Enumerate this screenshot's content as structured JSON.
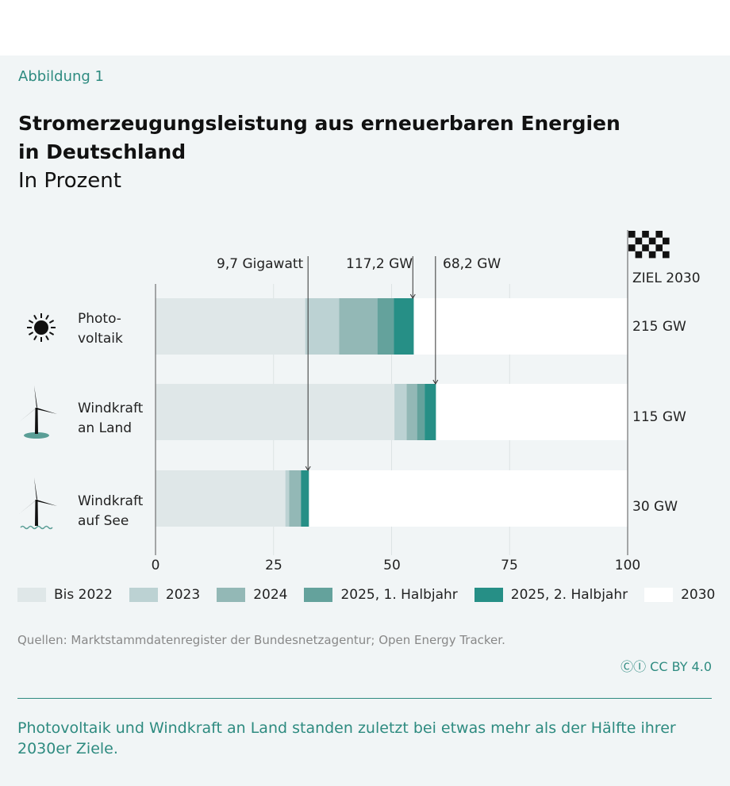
{
  "kicker": "Abbildung 1",
  "chart_data": {
    "type": "bar",
    "orientation": "horizontal-stacked",
    "title": "Stromerzeugungsleistung aus erneuerbaren Energien in Deutschland",
    "title_lines": [
      "Stromerzeugungsleistung aus erneuerbaren Energien",
      "in Deutschland"
    ],
    "subtitle": "In Prozent",
    "xlim": [
      0,
      100
    ],
    "xticks": [
      "0",
      "25",
      "50",
      "75",
      "100"
    ],
    "grid": true,
    "legend_position": "bottom",
    "categories": [
      {
        "lines": [
          "Photo-",
          "voltaik"
        ],
        "icon": "sun-icon",
        "target": "215 GW"
      },
      {
        "lines": [
          "Windkraft",
          "an Land"
        ],
        "icon": "wind-turbine-icon",
        "target": "115 GW"
      },
      {
        "lines": [
          "Windkraft",
          "auf See"
        ],
        "icon": "offshore-wind-turbine-icon",
        "target": "30 GW"
      }
    ],
    "series": [
      {
        "name": "Bis 2022",
        "color": "#dfe7e8",
        "values": [
          31.7,
          50.6,
          27.5
        ]
      },
      {
        "name": "2023",
        "color": "#bcd2d3",
        "values": [
          7.2,
          2.6,
          0.8
        ]
      },
      {
        "name": "2024",
        "color": "#93b8b6",
        "values": [
          8.1,
          2.2,
          2.5
        ]
      },
      {
        "name": "2025, 1. Halbjahr",
        "color": "#64a29c",
        "values": [
          3.5,
          1.6,
          0.0
        ]
      },
      {
        "name": "2025, 2. Halbjahr",
        "color": "#268f86",
        "values": [
          4.2,
          2.4,
          1.7
        ]
      },
      {
        "name": "2030",
        "color": "#ffffff",
        "values": [
          45.3,
          40.6,
          67.5
        ]
      }
    ],
    "annotations": [
      {
        "text": "9,7 Gigawatt",
        "category": 2,
        "value": 32.3
      },
      {
        "text": "117,2 GW",
        "category": 0,
        "value": 54.5
      },
      {
        "text": "68,2 GW",
        "category": 1,
        "value": 59.3
      }
    ],
    "target_label": "ZIEL 2030"
  },
  "source": "Quellen: Marktstammdatenregister der Bundesnetzagentur; Open Energy Tracker.",
  "license": "CC BY 4.0",
  "caption": "Photovoltaik und Windkraft an Land standen zuletzt bei etwas mehr als der Hälfte ihrer 2030er Ziele."
}
